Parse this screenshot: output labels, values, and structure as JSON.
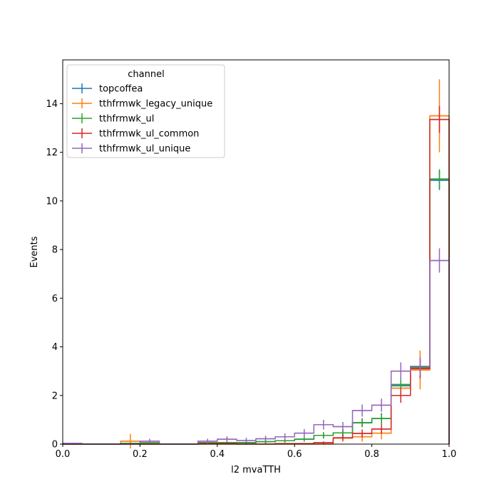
{
  "chart_data": {
    "type": "step-histogram",
    "xlabel": "l2 mvaTTH",
    "ylabel": "Events",
    "xlim": [
      0,
      1
    ],
    "ylim": [
      0,
      15.8
    ],
    "x_ticks": [
      0.0,
      0.2,
      0.4,
      0.6,
      0.8,
      1.0
    ],
    "x_tick_labels": [
      "0.0",
      "0.2",
      "0.4",
      "0.6",
      "0.8",
      "1.0"
    ],
    "y_ticks": [
      0,
      2,
      4,
      6,
      8,
      10,
      12,
      14
    ],
    "y_tick_labels": [
      "0",
      "2",
      "4",
      "6",
      "8",
      "10",
      "12",
      "14"
    ],
    "grid": false,
    "legend_title": "channel",
    "legend_position": "upper-left",
    "bin_edges": [
      0.0,
      0.05,
      0.1,
      0.15,
      0.2,
      0.25,
      0.3,
      0.35,
      0.4,
      0.45,
      0.5,
      0.55,
      0.6,
      0.65,
      0.7,
      0.75,
      0.8,
      0.85,
      0.9,
      0.95,
      1.0
    ],
    "series": [
      {
        "name": "topcoffea",
        "color": "#1f77b4",
        "values": [
          0,
          0,
          0,
          0.02,
          0,
          0,
          0,
          0.06,
          0.06,
          0.06,
          0.1,
          0.14,
          0.2,
          0.36,
          0.46,
          0.88,
          1.05,
          2.4,
          3.15,
          10.85
        ],
        "errors": [
          0,
          0,
          0,
          0.02,
          0,
          0,
          0,
          0.06,
          0.06,
          0.06,
          0.07,
          0.08,
          0.1,
          0.13,
          0.15,
          0.18,
          0.22,
          0.32,
          0.37,
          0.4
        ]
      },
      {
        "name": "tthfrmwk_legacy_unique",
        "color": "#ff7f0e",
        "values": [
          0,
          0,
          0,
          0.12,
          0,
          0,
          0,
          0,
          0,
          0,
          0,
          0,
          0,
          0,
          0.25,
          0.3,
          0.45,
          2.3,
          3.05,
          13.5
        ],
        "errors": [
          0,
          0,
          0,
          0.3,
          0,
          0,
          0,
          0,
          0,
          0,
          0,
          0,
          0,
          0,
          0.15,
          0.2,
          0.25,
          0.35,
          0.8,
          1.5
        ]
      },
      {
        "name": "tthfrmwk_ul",
        "color": "#2ca02c",
        "values": [
          0,
          0,
          0,
          0.03,
          0.06,
          0,
          0,
          0.06,
          0.06,
          0.06,
          0.1,
          0.14,
          0.2,
          0.36,
          0.46,
          0.88,
          1.05,
          2.45,
          3.15,
          10.9
        ],
        "errors": [
          0,
          0,
          0,
          0.03,
          0.05,
          0,
          0,
          0.06,
          0.06,
          0.06,
          0.07,
          0.08,
          0.1,
          0.13,
          0.15,
          0.18,
          0.22,
          0.32,
          0.37,
          0.4
        ]
      },
      {
        "name": "tthfrmwk_ul_common",
        "color": "#d62728",
        "values": [
          0,
          0,
          0,
          0,
          0,
          0,
          0,
          0.02,
          0.02,
          0,
          0,
          0.02,
          0.02,
          0.06,
          0.26,
          0.44,
          0.62,
          2.0,
          3.1,
          13.35
        ],
        "errors": [
          0,
          0,
          0,
          0,
          0,
          0,
          0,
          0.02,
          0.02,
          0,
          0,
          0.02,
          0.02,
          0.05,
          0.12,
          0.16,
          0.2,
          0.3,
          0.4,
          0.55
        ]
      },
      {
        "name": "tthfrmwk_ul_unique",
        "color": "#9467bd",
        "values": [
          0.03,
          0,
          0,
          0,
          0.12,
          0,
          0,
          0.12,
          0.2,
          0.15,
          0.22,
          0.3,
          0.45,
          0.8,
          0.72,
          1.38,
          1.6,
          3.0,
          3.2,
          7.55
        ],
        "errors": [
          0.03,
          0,
          0,
          0,
          0.1,
          0,
          0,
          0.1,
          0.12,
          0.11,
          0.12,
          0.14,
          0.17,
          0.2,
          0.19,
          0.25,
          0.27,
          0.36,
          0.38,
          0.5
        ]
      }
    ]
  }
}
